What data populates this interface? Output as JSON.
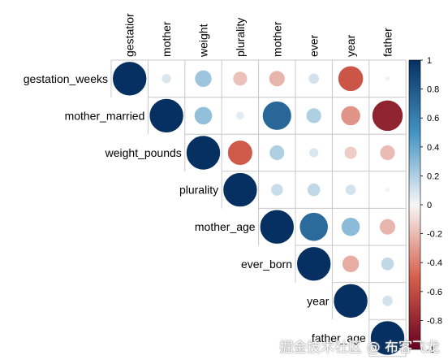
{
  "chart_data": {
    "type": "heatmap",
    "style": "corrplot-circle-upper",
    "row_labels": [
      "gestation_weeks",
      "mother_married",
      "weight_pounds",
      "plurality",
      "mother_age",
      "ever_born",
      "year",
      "father_age"
    ],
    "col_labels": [
      "gestatior",
      "mother",
      "weight",
      "plurality",
      "mother",
      "ever",
      "year",
      "father"
    ],
    "matrix": [
      [
        1.0,
        0.08,
        0.25,
        -0.18,
        -0.22,
        0.1,
        -0.55,
        -0.02
      ],
      [
        null,
        1.0,
        0.28,
        0.06,
        0.72,
        0.2,
        -0.33,
        -0.82
      ],
      [
        null,
        null,
        1.0,
        -0.53,
        0.2,
        0.08,
        -0.14,
        -0.2
      ],
      [
        null,
        null,
        null,
        1.0,
        0.13,
        0.15,
        0.1,
        -0.02
      ],
      [
        null,
        null,
        null,
        null,
        1.0,
        0.7,
        0.3,
        -0.22
      ],
      [
        null,
        null,
        null,
        null,
        null,
        1.0,
        -0.25,
        0.15
      ],
      [
        null,
        null,
        null,
        null,
        null,
        null,
        1.0,
        0.1
      ],
      [
        null,
        null,
        null,
        null,
        null,
        null,
        null,
        1.0
      ]
    ],
    "colorbar": {
      "ticks": [
        "1",
        "0.8",
        "0.6",
        "0.4",
        "0.2",
        "0",
        "-0.2",
        "-0.4",
        "-0.6",
        "-0.8",
        "-1"
      ],
      "range": [
        -1,
        1
      ]
    },
    "colors": {
      "negative": "#67001F",
      "zero": "#F7F7F7",
      "positive": "#053061"
    }
  },
  "watermark": "掘金技术社区 @ 布客飞龙"
}
